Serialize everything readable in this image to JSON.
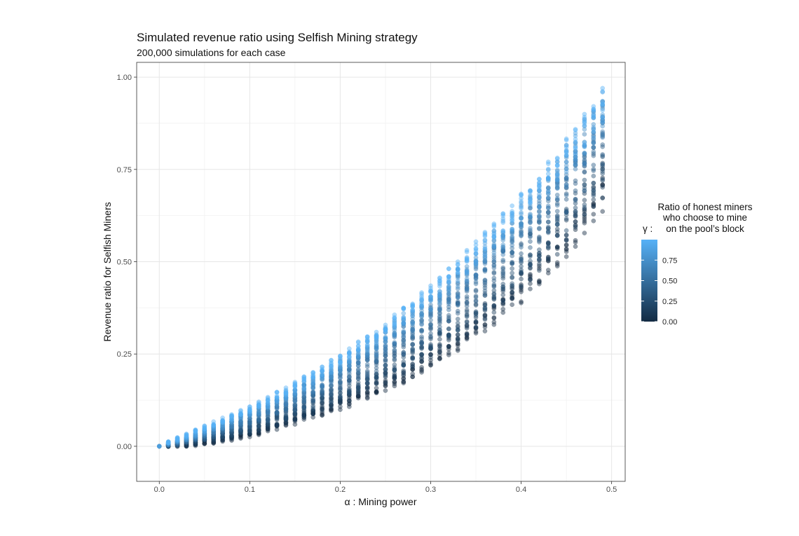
{
  "chart_data": {
    "type": "scatter",
    "title": "Simulated revenue ratio using Selfish Mining strategy",
    "subtitle": "200,000 simulations for each case",
    "xlabel": "α : Mining power",
    "ylabel": "Revenue ratio for Selfish Miners",
    "xlim": [
      -0.025,
      0.515
    ],
    "ylim": [
      -0.095,
      1.04
    ],
    "x_ticks": [
      "0.0",
      "0.1",
      "0.2",
      "0.3",
      "0.4",
      "0.5"
    ],
    "x_tick_values": [
      0,
      0.1,
      0.2,
      0.3,
      0.4,
      0.5
    ],
    "y_ticks": [
      "0.00",
      "0.25",
      "0.50",
      "0.75",
      "1.00"
    ],
    "y_tick_values": [
      0,
      0.25,
      0.5,
      0.75,
      1.0
    ],
    "grid": true,
    "legend": {
      "position": "right",
      "title_prefix": "γ :",
      "title_lines": [
        "Ratio of honest miners",
        "who choose to mine",
        "on the pool’s block"
      ],
      "labels": [
        "0.00",
        "0.25",
        "0.50",
        "0.75"
      ],
      "values": [
        0,
        0.25,
        0.5,
        0.75
      ],
      "range": [
        0,
        1
      ],
      "color_low": "#132B43",
      "color_high": "#56B1F7"
    },
    "point_alpha": 0.45,
    "x_values": [
      0.0,
      0.01,
      0.02,
      0.03,
      0.04,
      0.05,
      0.06,
      0.07,
      0.08,
      0.09,
      0.1,
      0.11,
      0.12,
      0.13,
      0.14,
      0.15,
      0.16,
      0.17,
      0.18,
      0.19,
      0.2,
      0.21,
      0.22,
      0.23,
      0.24,
      0.25,
      0.26,
      0.27,
      0.28,
      0.29,
      0.3,
      0.31,
      0.32,
      0.33,
      0.34,
      0.35,
      0.36,
      0.37,
      0.38,
      0.39,
      0.4,
      0.41,
      0.42,
      0.43,
      0.44,
      0.45,
      0.46,
      0.47,
      0.48,
      0.49
    ],
    "gamma_values": [
      0.0,
      0.125,
      0.25,
      0.375,
      0.5,
      0.625,
      0.75,
      0.875,
      1.0
    ],
    "series": [
      {
        "gamma": 0.0,
        "y": [
          0.0,
          0.0,
          0.002,
          0.003,
          0.006,
          0.009,
          0.013,
          0.017,
          0.022,
          0.028,
          0.034,
          0.04,
          0.047,
          0.055,
          0.063,
          0.07,
          0.078,
          0.086,
          0.094,
          0.103,
          0.112,
          0.121,
          0.131,
          0.141,
          0.152,
          0.163,
          0.175,
          0.188,
          0.201,
          0.215,
          0.23,
          0.246,
          0.262,
          0.279,
          0.297,
          0.315,
          0.334,
          0.353,
          0.373,
          0.394,
          0.415,
          0.439,
          0.463,
          0.489,
          0.517,
          0.546,
          0.577,
          0.61,
          0.645,
          0.68
        ]
      },
      {
        "gamma": 0.25,
        "y": [
          0.0,
          0.003,
          0.006,
          0.01,
          0.014,
          0.019,
          0.024,
          0.03,
          0.036,
          0.043,
          0.05,
          0.058,
          0.066,
          0.075,
          0.084,
          0.093,
          0.102,
          0.112,
          0.122,
          0.133,
          0.144,
          0.155,
          0.167,
          0.18,
          0.193,
          0.206,
          0.22,
          0.235,
          0.25,
          0.266,
          0.282,
          0.299,
          0.317,
          0.335,
          0.354,
          0.374,
          0.394,
          0.415,
          0.437,
          0.46,
          0.484,
          0.509,
          0.535,
          0.562,
          0.59,
          0.62,
          0.652,
          0.686,
          0.722,
          0.76
        ]
      },
      {
        "gamma": 0.5,
        "y": [
          0.0,
          0.005,
          0.01,
          0.016,
          0.022,
          0.029,
          0.036,
          0.044,
          0.052,
          0.061,
          0.07,
          0.08,
          0.09,
          0.1,
          0.111,
          0.122,
          0.134,
          0.146,
          0.158,
          0.171,
          0.184,
          0.198,
          0.212,
          0.227,
          0.242,
          0.258,
          0.274,
          0.291,
          0.308,
          0.326,
          0.345,
          0.364,
          0.383,
          0.403,
          0.424,
          0.446,
          0.468,
          0.491,
          0.515,
          0.54,
          0.566,
          0.593,
          0.621,
          0.65,
          0.68,
          0.712,
          0.745,
          0.78,
          0.817,
          0.855
        ]
      },
      {
        "gamma": 0.75,
        "y": [
          0.0,
          0.008,
          0.015,
          0.022,
          0.03,
          0.038,
          0.047,
          0.056,
          0.066,
          0.076,
          0.086,
          0.097,
          0.108,
          0.12,
          0.132,
          0.144,
          0.157,
          0.17,
          0.184,
          0.198,
          0.213,
          0.228,
          0.243,
          0.259,
          0.276,
          0.293,
          0.31,
          0.328,
          0.347,
          0.366,
          0.386,
          0.406,
          0.427,
          0.448,
          0.47,
          0.493,
          0.516,
          0.54,
          0.565,
          0.59,
          0.617,
          0.644,
          0.672,
          0.701,
          0.731,
          0.762,
          0.795,
          0.829,
          0.864,
          0.9
        ]
      },
      {
        "gamma": 1.0,
        "y": [
          0.0,
          0.01,
          0.02,
          0.03,
          0.04,
          0.05,
          0.06,
          0.07,
          0.08,
          0.09,
          0.1,
          0.112,
          0.124,
          0.137,
          0.15,
          0.163,
          0.177,
          0.191,
          0.206,
          0.221,
          0.237,
          0.253,
          0.27,
          0.287,
          0.305,
          0.323,
          0.342,
          0.361,
          0.381,
          0.401,
          0.422,
          0.443,
          0.465,
          0.487,
          0.51,
          0.533,
          0.557,
          0.581,
          0.606,
          0.632,
          0.658,
          0.685,
          0.712,
          0.74,
          0.769,
          0.799,
          0.83,
          0.862,
          0.895,
          0.93
        ]
      }
    ],
    "spread": [
      0.0,
      0.003,
      0.004,
      0.005,
      0.006,
      0.006,
      0.007,
      0.007,
      0.008,
      0.008,
      0.009,
      0.009,
      0.01,
      0.01,
      0.011,
      0.011,
      0.012,
      0.012,
      0.012,
      0.013,
      0.013,
      0.014,
      0.014,
      0.015,
      0.015,
      0.016,
      0.016,
      0.017,
      0.017,
      0.018,
      0.019,
      0.019,
      0.02,
      0.021,
      0.022,
      0.023,
      0.024,
      0.025,
      0.026,
      0.027,
      0.028,
      0.03,
      0.031,
      0.033,
      0.035,
      0.037,
      0.039,
      0.042,
      0.045,
      0.048
    ]
  }
}
